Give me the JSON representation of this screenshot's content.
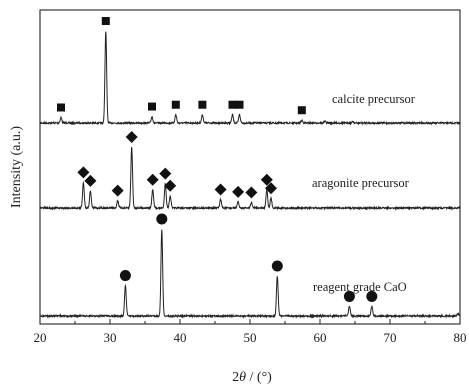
{
  "chart_data": {
    "type": "line",
    "title": "",
    "xlabel_main": "2",
    "xlabel_theta": "θ",
    "xlabel_unit": " / (°)",
    "ylabel": "Intensity (a.u.)",
    "xlim": [
      20,
      80
    ],
    "xticks": [
      20,
      30,
      40,
      50,
      60,
      70,
      80
    ],
    "grid": false,
    "series": [
      {
        "name": "calcite precursor",
        "marker": "square",
        "peaks": [
          {
            "x": 23.0,
            "h": 0.06
          },
          {
            "x": 29.4,
            "h": 1.0
          },
          {
            "x": 36.0,
            "h": 0.07
          },
          {
            "x": 39.4,
            "h": 0.09
          },
          {
            "x": 43.2,
            "h": 0.09
          },
          {
            "x": 47.5,
            "h": 0.09
          },
          {
            "x": 48.5,
            "h": 0.09
          },
          {
            "x": 57.4,
            "h": 0.03
          },
          {
            "x": 60.7,
            "h": 0.02
          },
          {
            "x": 64.7,
            "h": 0.015
          }
        ],
        "marker_x": [
          23.0,
          29.4,
          36.0,
          39.4,
          43.2,
          47.5,
          48.5,
          57.4
        ]
      },
      {
        "name": "aragonite precursor",
        "marker": "diamond",
        "peaks": [
          {
            "x": 26.2,
            "h": 0.42
          },
          {
            "x": 27.2,
            "h": 0.28
          },
          {
            "x": 31.1,
            "h": 0.12
          },
          {
            "x": 33.1,
            "h": 1.0
          },
          {
            "x": 36.1,
            "h": 0.3
          },
          {
            "x": 37.9,
            "h": 0.4
          },
          {
            "x": 38.6,
            "h": 0.2
          },
          {
            "x": 45.8,
            "h": 0.14
          },
          {
            "x": 48.3,
            "h": 0.1
          },
          {
            "x": 50.2,
            "h": 0.09
          },
          {
            "x": 52.4,
            "h": 0.3
          },
          {
            "x": 53.0,
            "h": 0.16
          }
        ],
        "marker_x": [
          26.2,
          27.2,
          31.1,
          33.1,
          36.1,
          37.9,
          38.6,
          45.8,
          48.3,
          50.2,
          52.4,
          53.0
        ]
      },
      {
        "name": "reagent grade CaO",
        "marker": "circle",
        "peaks": [
          {
            "x": 32.2,
            "h": 0.35
          },
          {
            "x": 37.4,
            "h": 1.0
          },
          {
            "x": 53.9,
            "h": 0.46
          },
          {
            "x": 64.2,
            "h": 0.11
          },
          {
            "x": 67.4,
            "h": 0.11
          },
          {
            "x": 79.7,
            "h": 0.03
          }
        ],
        "marker_x": [
          32.2,
          37.4,
          53.9,
          64.2,
          67.4
        ]
      }
    ]
  }
}
